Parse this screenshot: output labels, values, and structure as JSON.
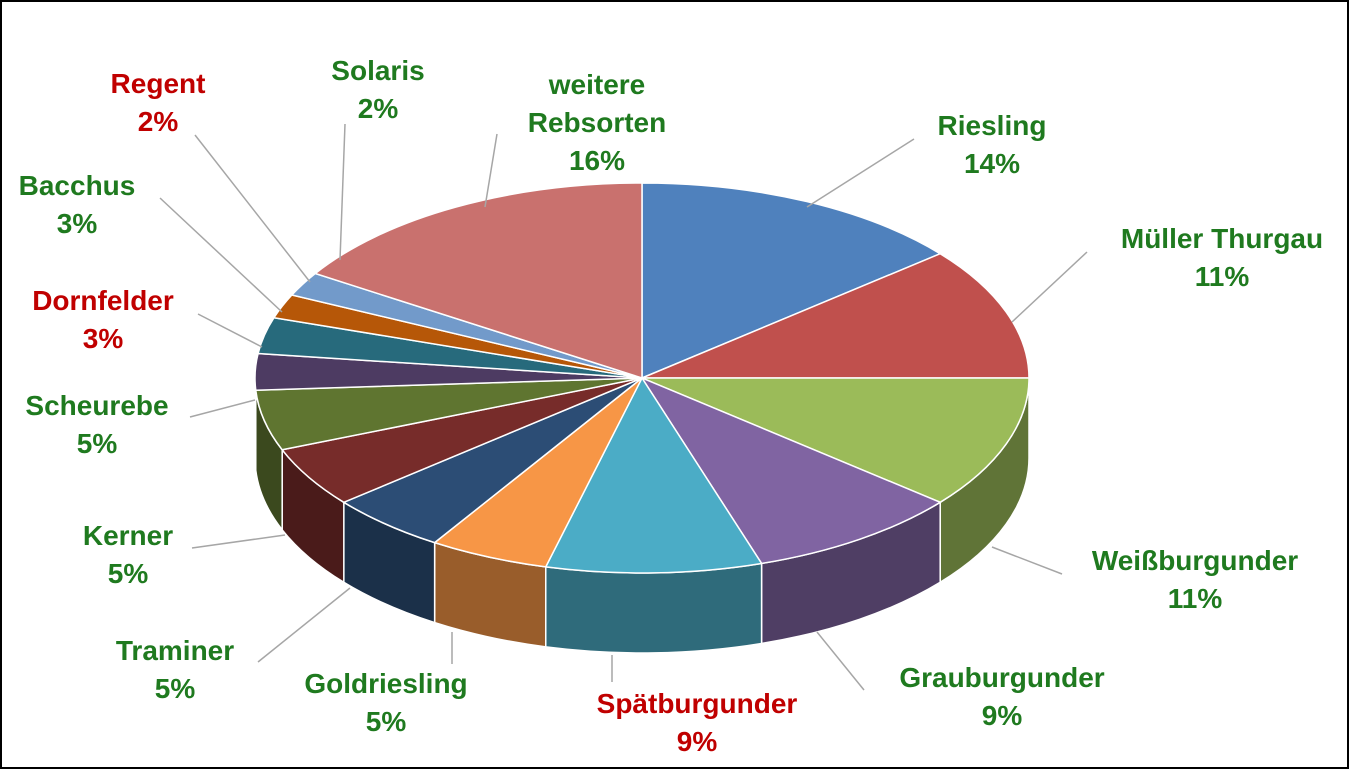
{
  "chart_data": {
    "type": "pie3d",
    "categories": [
      "Riesling",
      "Müller Thurgau",
      "Weißburgunder",
      "Grauburgunder",
      "Spätburgunder",
      "Goldriesling",
      "Traminer",
      "Kerner",
      "Scheurebe",
      "Dornfelder",
      "Bacchus",
      "Regent",
      "Solaris",
      "weitere Rebsorten"
    ],
    "values": [
      14,
      11,
      11,
      9,
      9,
      5,
      5,
      5,
      5,
      3,
      3,
      2,
      2,
      16
    ],
    "value_labels": [
      "14%",
      "11%",
      "11%",
      "9%",
      "9%",
      "5%",
      "5%",
      "5%",
      "5%",
      "3%",
      "3%",
      "2%",
      "2%",
      "16%"
    ],
    "colors": [
      "#4f81bd",
      "#c0504d",
      "#9bbb59",
      "#8064a2",
      "#4bacc6",
      "#f79646",
      "#2c4d75",
      "#772c2a",
      "#5f7530",
      "#4d3b62",
      "#276a7c",
      "#b65708",
      "#729aca",
      "#c9716e"
    ],
    "label_colors": [
      "#1f7a1f",
      "#1f7a1f",
      "#1f7a1f",
      "#1f7a1f",
      "#c00000",
      "#1f7a1f",
      "#1f7a1f",
      "#1f7a1f",
      "#1f7a1f",
      "#c00000",
      "#1f7a1f",
      "#c00000",
      "#1f7a1f",
      "#1f7a1f"
    ]
  }
}
